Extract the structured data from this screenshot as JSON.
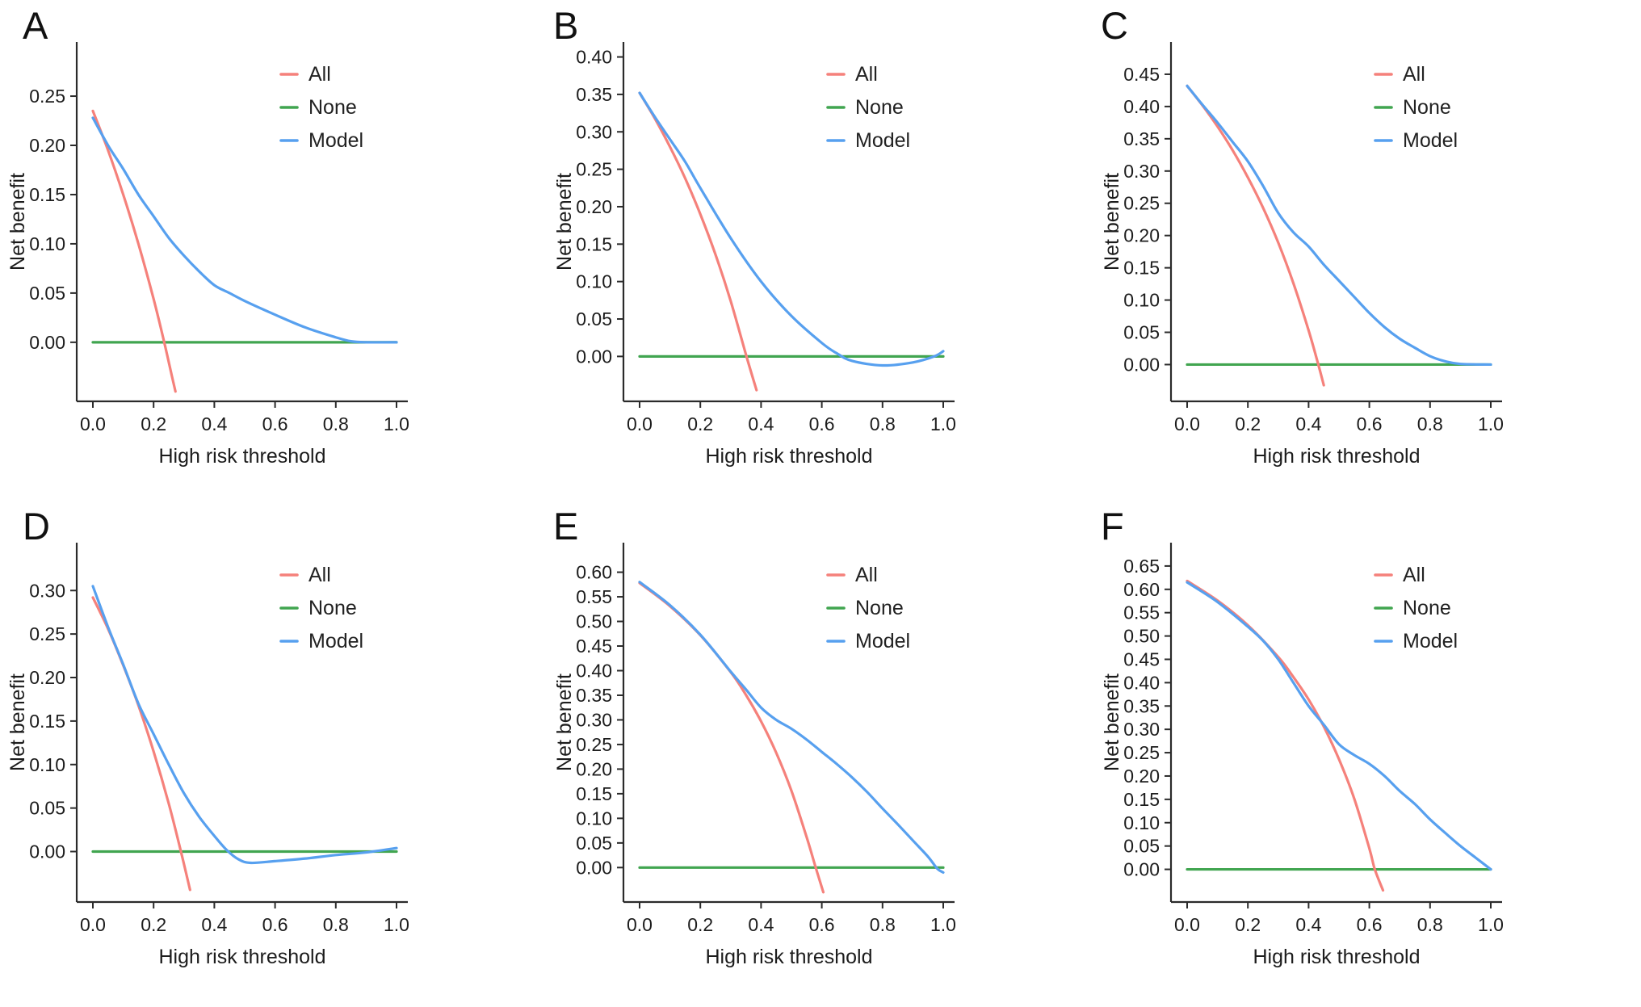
{
  "figure": {
    "kind": "decision-curve-analysis-multipanel",
    "panel_count": 6,
    "background": "#ffffff"
  },
  "colors": {
    "all": "#f5817b",
    "none": "#41a550",
    "model": "#57a0ef",
    "axis": "#2b2b2b",
    "text": "#1c1c1c"
  },
  "chart_data": [
    {
      "id": "A",
      "type": "line",
      "xlabel": "High risk threshold",
      "ylabel": "Net benefit",
      "xlim": [
        0,
        1
      ],
      "ylim": [
        -0.06,
        0.305
      ],
      "xtick_labels": [
        "0.0",
        "0.2",
        "0.4",
        "0.6",
        "0.8",
        "1.0"
      ],
      "ytick_labels": [
        "0.00",
        "0.05",
        "0.10",
        "0.15",
        "0.20",
        "0.25"
      ],
      "grid": false,
      "legend": [
        "All",
        "None",
        "Model"
      ],
      "legend_position": "upper-right",
      "series": [
        {
          "name": "All",
          "color": "#f5817b",
          "x": [
            0,
            0.05,
            0.1,
            0.15,
            0.2,
            0.235,
            0.26,
            0.272
          ],
          "y": [
            0.235,
            0.195,
            0.15,
            0.1,
            0.044,
            0.0,
            -0.034,
            -0.05
          ]
        },
        {
          "name": "None",
          "color": "#41a550",
          "x": [
            0,
            1.0
          ],
          "y": [
            0,
            0
          ]
        },
        {
          "name": "Model",
          "color": "#57a0ef",
          "x": [
            0,
            0.05,
            0.1,
            0.15,
            0.2,
            0.25,
            0.3,
            0.35,
            0.4,
            0.45,
            0.5,
            0.6,
            0.7,
            0.8,
            0.85,
            0.9,
            1.0
          ],
          "y": [
            0.228,
            0.2,
            0.176,
            0.15,
            0.128,
            0.106,
            0.088,
            0.072,
            0.058,
            0.05,
            0.042,
            0.028,
            0.015,
            0.005,
            0.001,
            0.0,
            0.0
          ]
        }
      ]
    },
    {
      "id": "B",
      "type": "line",
      "xlabel": "High risk threshold",
      "ylabel": "Net benefit",
      "xlim": [
        0,
        1
      ],
      "ylim": [
        -0.06,
        0.42
      ],
      "xtick_labels": [
        "0.0",
        "0.2",
        "0.4",
        "0.6",
        "0.8",
        "1.0"
      ],
      "ytick_labels": [
        "0.00",
        "0.05",
        "0.10",
        "0.15",
        "0.20",
        "0.25",
        "0.30",
        "0.35",
        "0.40"
      ],
      "grid": false,
      "legend": [
        "All",
        "None",
        "Model"
      ],
      "legend_position": "upper-right",
      "series": [
        {
          "name": "All",
          "color": "#f5817b",
          "x": [
            0,
            0.05,
            0.1,
            0.15,
            0.2,
            0.25,
            0.3,
            0.352,
            0.385
          ],
          "y": [
            0.352,
            0.318,
            0.28,
            0.238,
            0.19,
            0.136,
            0.074,
            0.0,
            -0.045
          ]
        },
        {
          "name": "None",
          "color": "#41a550",
          "x": [
            0,
            1.0
          ],
          "y": [
            0,
            0
          ]
        },
        {
          "name": "Model",
          "color": "#57a0ef",
          "x": [
            0,
            0.05,
            0.1,
            0.15,
            0.2,
            0.3,
            0.4,
            0.5,
            0.6,
            0.65,
            0.7,
            0.8,
            0.9,
            0.97,
            1.0
          ],
          "y": [
            0.352,
            0.32,
            0.29,
            0.26,
            0.225,
            0.158,
            0.1,
            0.054,
            0.018,
            0.004,
            -0.006,
            -0.012,
            -0.008,
            0.0,
            0.007
          ]
        }
      ]
    },
    {
      "id": "C",
      "type": "line",
      "xlabel": "High risk threshold",
      "ylabel": "Net benefit",
      "xlim": [
        0,
        1
      ],
      "ylim": [
        -0.057,
        0.5
      ],
      "xtick_labels": [
        "0.0",
        "0.2",
        "0.4",
        "0.6",
        "0.8",
        "1.0"
      ],
      "ytick_labels": [
        "0.00",
        "0.05",
        "0.10",
        "0.15",
        "0.20",
        "0.25",
        "0.30",
        "0.35",
        "0.40",
        "0.45"
      ],
      "grid": false,
      "legend": [
        "All",
        "None",
        "Model"
      ],
      "legend_position": "upper-right",
      "series": [
        {
          "name": "All",
          "color": "#f5817b",
          "x": [
            0,
            0.05,
            0.1,
            0.15,
            0.2,
            0.25,
            0.3,
            0.35,
            0.4,
            0.432,
            0.45
          ],
          "y": [
            0.432,
            0.402,
            0.369,
            0.332,
            0.29,
            0.243,
            0.189,
            0.126,
            0.053,
            0.0,
            -0.032
          ]
        },
        {
          "name": "None",
          "color": "#41a550",
          "x": [
            0,
            1.0
          ],
          "y": [
            0,
            0
          ]
        },
        {
          "name": "Model",
          "color": "#57a0ef",
          "x": [
            0,
            0.05,
            0.1,
            0.15,
            0.2,
            0.25,
            0.3,
            0.35,
            0.4,
            0.45,
            0.5,
            0.55,
            0.6,
            0.65,
            0.7,
            0.75,
            0.8,
            0.85,
            0.9,
            1.0
          ],
          "y": [
            0.432,
            0.403,
            0.375,
            0.345,
            0.315,
            0.277,
            0.235,
            0.205,
            0.183,
            0.155,
            0.13,
            0.105,
            0.08,
            0.058,
            0.04,
            0.026,
            0.013,
            0.005,
            0.001,
            0.0
          ]
        }
      ]
    },
    {
      "id": "D",
      "type": "line",
      "xlabel": "High risk threshold",
      "ylabel": "Net benefit",
      "xlim": [
        0,
        1
      ],
      "ylim": [
        -0.058,
        0.355
      ],
      "xtick_labels": [
        "0.0",
        "0.2",
        "0.4",
        "0.6",
        "0.8",
        "1.0"
      ],
      "ytick_labels": [
        "0.00",
        "0.05",
        "0.10",
        "0.15",
        "0.20",
        "0.25",
        "0.30"
      ],
      "grid": false,
      "legend": [
        "All",
        "None",
        "Model"
      ],
      "legend_position": "upper-right",
      "series": [
        {
          "name": "All",
          "color": "#f5817b",
          "x": [
            0,
            0.05,
            0.1,
            0.15,
            0.2,
            0.25,
            0.29,
            0.32
          ],
          "y": [
            0.292,
            0.256,
            0.214,
            0.168,
            0.115,
            0.055,
            0.0,
            -0.044
          ]
        },
        {
          "name": "None",
          "color": "#41a550",
          "x": [
            0,
            1.0
          ],
          "y": [
            0,
            0
          ]
        },
        {
          "name": "Model",
          "color": "#57a0ef",
          "x": [
            0,
            0.05,
            0.1,
            0.15,
            0.2,
            0.25,
            0.3,
            0.35,
            0.4,
            0.44,
            0.48,
            0.52,
            0.6,
            0.7,
            0.8,
            0.9,
            1.0
          ],
          "y": [
            0.305,
            0.258,
            0.215,
            0.17,
            0.135,
            0.1,
            0.067,
            0.04,
            0.018,
            0.002,
            -0.009,
            -0.013,
            -0.011,
            -0.008,
            -0.004,
            -0.001,
            0.004
          ]
        }
      ]
    },
    {
      "id": "E",
      "type": "line",
      "xlabel": "High risk threshold",
      "ylabel": "Net benefit",
      "xlim": [
        0,
        1
      ],
      "ylim": [
        -0.07,
        0.66
      ],
      "xtick_labels": [
        "0.0",
        "0.2",
        "0.4",
        "0.6",
        "0.8",
        "1.0"
      ],
      "ytick_labels": [
        "0.00",
        "0.05",
        "0.10",
        "0.15",
        "0.20",
        "0.25",
        "0.30",
        "0.35",
        "0.40",
        "0.45",
        "0.50",
        "0.55",
        "0.60"
      ],
      "grid": false,
      "legend": [
        "All",
        "None",
        "Model"
      ],
      "legend_position": "upper-right",
      "series": [
        {
          "name": "All",
          "color": "#f5817b",
          "x": [
            0,
            0.1,
            0.2,
            0.3,
            0.35,
            0.4,
            0.45,
            0.5,
            0.55,
            0.58,
            0.605
          ],
          "y": [
            0.578,
            0.531,
            0.472,
            0.397,
            0.351,
            0.297,
            0.233,
            0.156,
            0.062,
            0.0,
            -0.05
          ]
        },
        {
          "name": "None",
          "color": "#41a550",
          "x": [
            0,
            1.0
          ],
          "y": [
            0,
            0
          ]
        },
        {
          "name": "Model",
          "color": "#57a0ef",
          "x": [
            0,
            0.1,
            0.2,
            0.3,
            0.35,
            0.4,
            0.45,
            0.5,
            0.55,
            0.6,
            0.65,
            0.7,
            0.75,
            0.8,
            0.85,
            0.9,
            0.95,
            0.98,
            1.0
          ],
          "y": [
            0.58,
            0.533,
            0.473,
            0.398,
            0.362,
            0.325,
            0.3,
            0.282,
            0.26,
            0.235,
            0.21,
            0.183,
            0.153,
            0.12,
            0.088,
            0.055,
            0.022,
            -0.002,
            -0.01
          ]
        }
      ]
    },
    {
      "id": "F",
      "type": "line",
      "xlabel": "High risk threshold",
      "ylabel": "Net benefit",
      "xlim": [
        0,
        1
      ],
      "ylim": [
        -0.07,
        0.7
      ],
      "xtick_labels": [
        "0.0",
        "0.2",
        "0.4",
        "0.6",
        "0.8",
        "1.0"
      ],
      "ytick_labels": [
        "0.00",
        "0.05",
        "0.10",
        "0.15",
        "0.20",
        "0.25",
        "0.30",
        "0.35",
        "0.40",
        "0.45",
        "0.50",
        "0.55",
        "0.60",
        "0.65"
      ],
      "grid": false,
      "legend": [
        "All",
        "None",
        "Model"
      ],
      "legend_position": "upper-right",
      "series": [
        {
          "name": "All",
          "color": "#f5817b",
          "x": [
            0,
            0.1,
            0.2,
            0.3,
            0.35,
            0.4,
            0.45,
            0.5,
            0.55,
            0.6,
            0.618,
            0.645
          ],
          "y": [
            0.618,
            0.576,
            0.523,
            0.455,
            0.412,
            0.364,
            0.306,
            0.236,
            0.152,
            0.045,
            0.0,
            -0.045
          ]
        },
        {
          "name": "None",
          "color": "#41a550",
          "x": [
            0,
            1.0
          ],
          "y": [
            0,
            0
          ]
        },
        {
          "name": "Model",
          "color": "#57a0ef",
          "x": [
            0,
            0.1,
            0.2,
            0.25,
            0.3,
            0.35,
            0.4,
            0.45,
            0.5,
            0.55,
            0.6,
            0.65,
            0.7,
            0.75,
            0.8,
            0.85,
            0.9,
            0.95,
            1.0
          ],
          "y": [
            0.615,
            0.573,
            0.52,
            0.49,
            0.45,
            0.4,
            0.35,
            0.31,
            0.268,
            0.245,
            0.226,
            0.2,
            0.168,
            0.14,
            0.107,
            0.078,
            0.05,
            0.025,
            0.0
          ]
        }
      ]
    }
  ]
}
